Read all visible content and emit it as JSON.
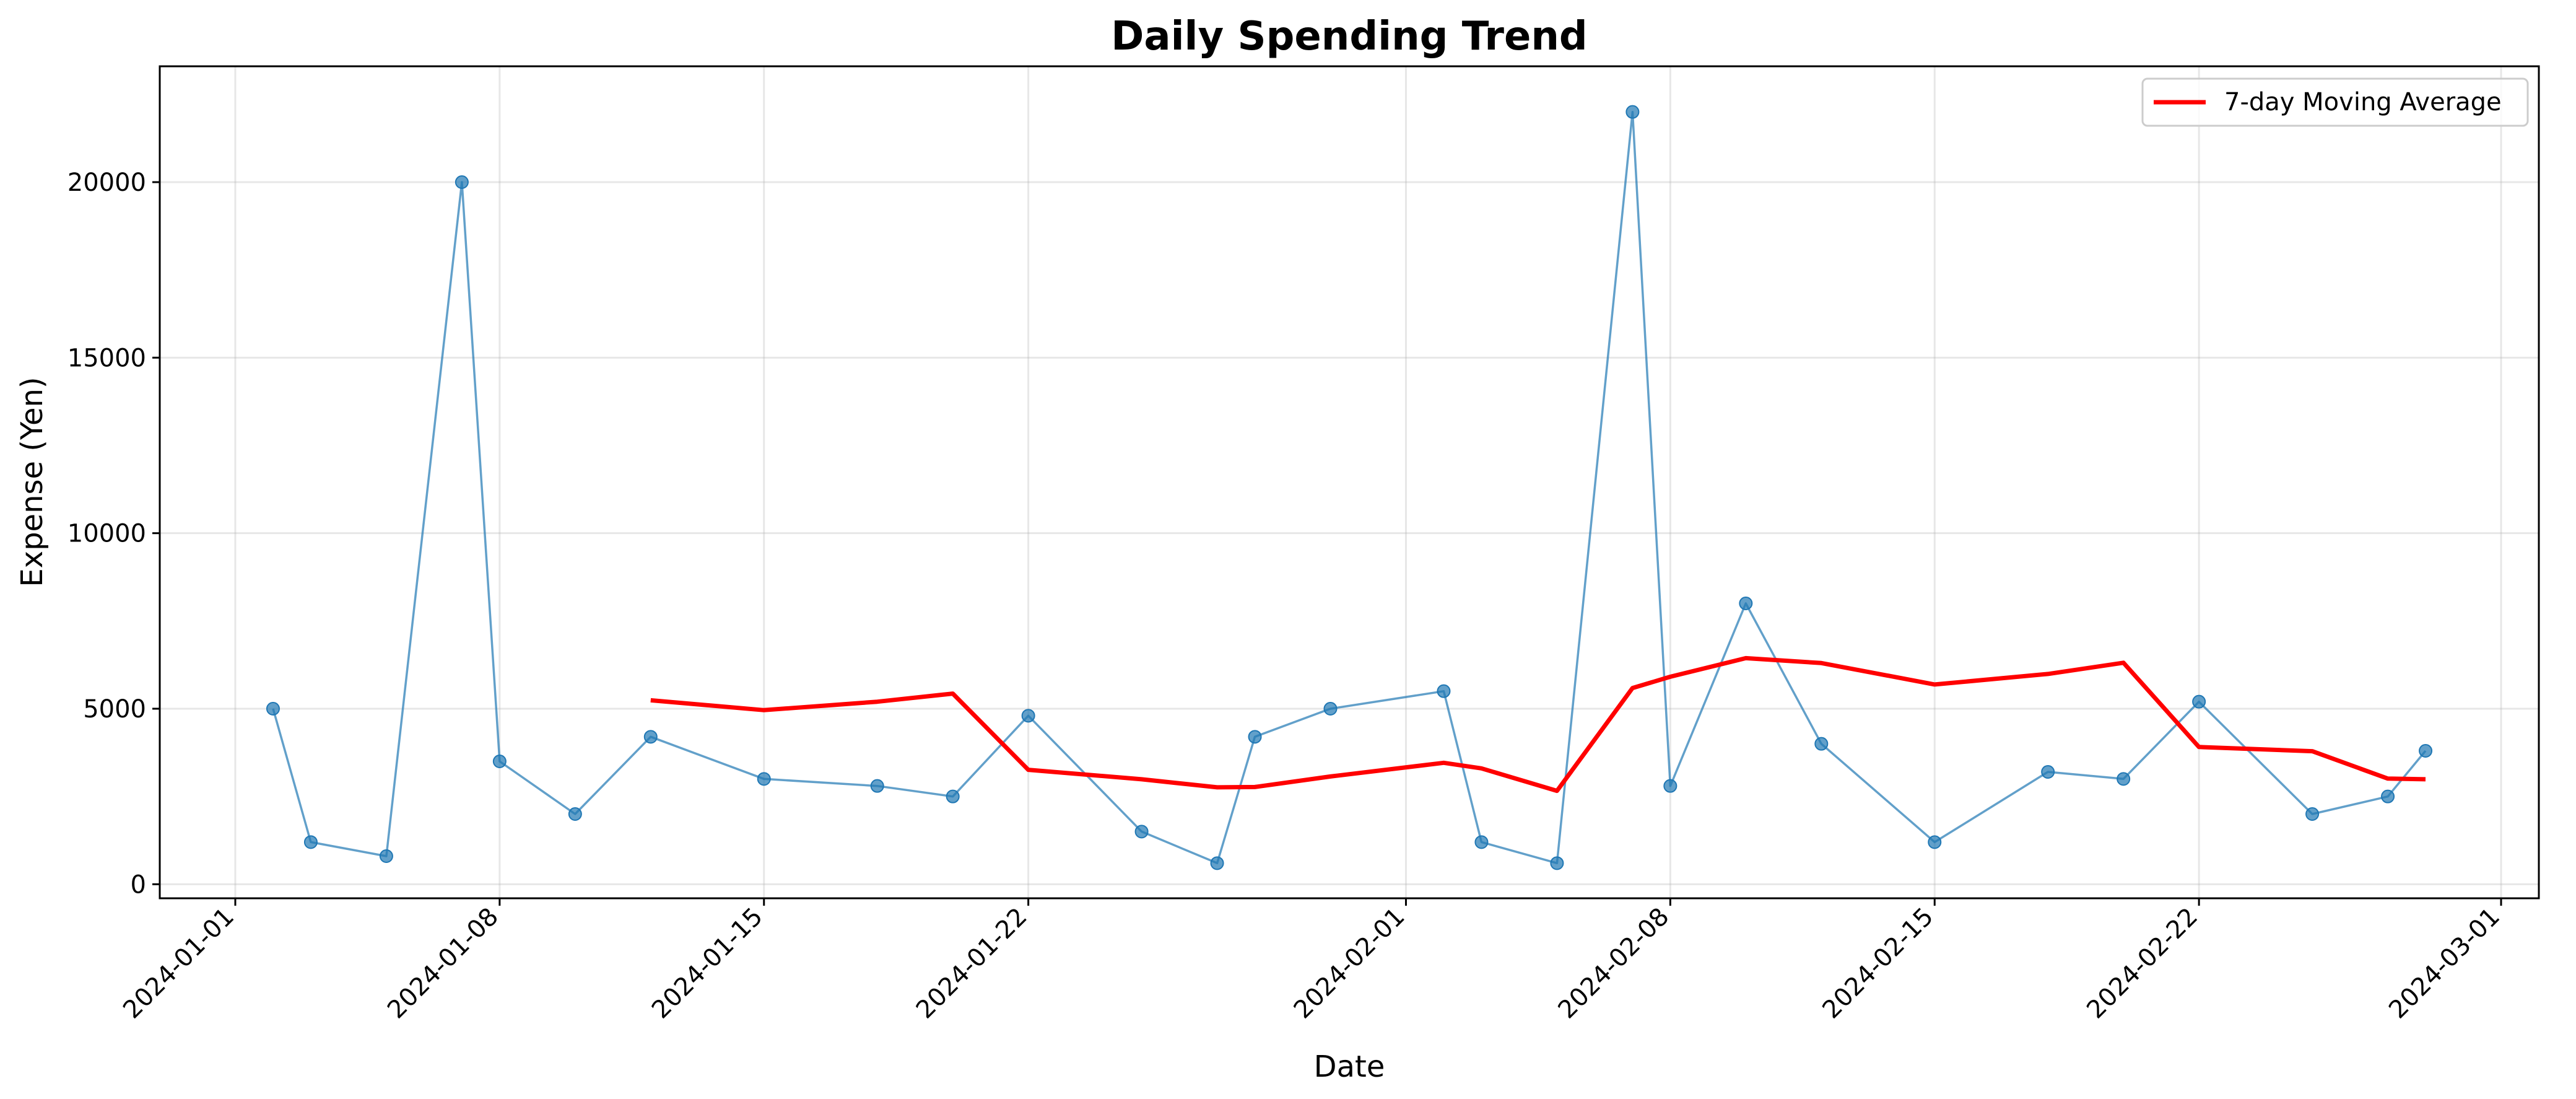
{
  "chart_data": {
    "type": "line",
    "title": "Daily Spending Trend",
    "xlabel": "Date",
    "ylabel": "Expense (Yen)",
    "x_axis_type": "date",
    "xlim": [
      "2023-12-30",
      "2024-03-02"
    ],
    "ylim": [
      -400,
      23300
    ],
    "x_ticks": [
      "2024-01-01",
      "2024-01-08",
      "2024-01-15",
      "2024-01-22",
      "2024-02-01",
      "2024-02-08",
      "2024-02-15",
      "2024-02-22",
      "2024-03-01"
    ],
    "y_ticks": [
      0,
      5000,
      10000,
      15000,
      20000
    ],
    "grid": true,
    "legend_position": "top-right",
    "series": [
      {
        "role": "daily",
        "color": "#1f77b4",
        "marker": "circle",
        "x": [
          "2024-01-02",
          "2024-01-03",
          "2024-01-05",
          "2024-01-07",
          "2024-01-08",
          "2024-01-10",
          "2024-01-12",
          "2024-01-15",
          "2024-01-18",
          "2024-01-20",
          "2024-01-22",
          "2024-01-25",
          "2024-01-27",
          "2024-01-28",
          "2024-01-30",
          "2024-02-02",
          "2024-02-03",
          "2024-02-05",
          "2024-02-07",
          "2024-02-08",
          "2024-02-10",
          "2024-02-12",
          "2024-02-15",
          "2024-02-18",
          "2024-02-20",
          "2024-02-22",
          "2024-02-25",
          "2024-02-27",
          "2024-02-28"
        ],
        "values": [
          5000,
          1200,
          800,
          20000,
          3500,
          2000,
          4200,
          3000,
          2800,
          2500,
          4800,
          1500,
          600,
          4200,
          5000,
          5500,
          1200,
          600,
          22000,
          2800,
          8000,
          4000,
          1200,
          3200,
          3000,
          5200,
          2000,
          2500,
          3800
        ]
      },
      {
        "name": "7-day Moving Average",
        "role": "moving-average",
        "color": "#ff0000",
        "x": [
          "2024-01-12",
          "2024-01-15",
          "2024-01-18",
          "2024-01-20",
          "2024-01-22",
          "2024-01-25",
          "2024-01-27",
          "2024-01-28",
          "2024-01-30",
          "2024-02-02",
          "2024-02-03",
          "2024-02-05",
          "2024-02-07",
          "2024-02-08",
          "2024-02-10",
          "2024-02-12",
          "2024-02-15",
          "2024-02-18",
          "2024-02-20",
          "2024-02-22",
          "2024-02-25",
          "2024-02-27",
          "2024-02-28"
        ],
        "values": [
          5240,
          4960,
          5200,
          5430,
          3260,
          2990,
          2760,
          2770,
          3070,
          3460,
          3300,
          2660,
          5590,
          5910,
          6440,
          6300,
          5690,
          5990,
          6310,
          3910,
          3790,
          3010,
          2990
        ]
      }
    ]
  }
}
